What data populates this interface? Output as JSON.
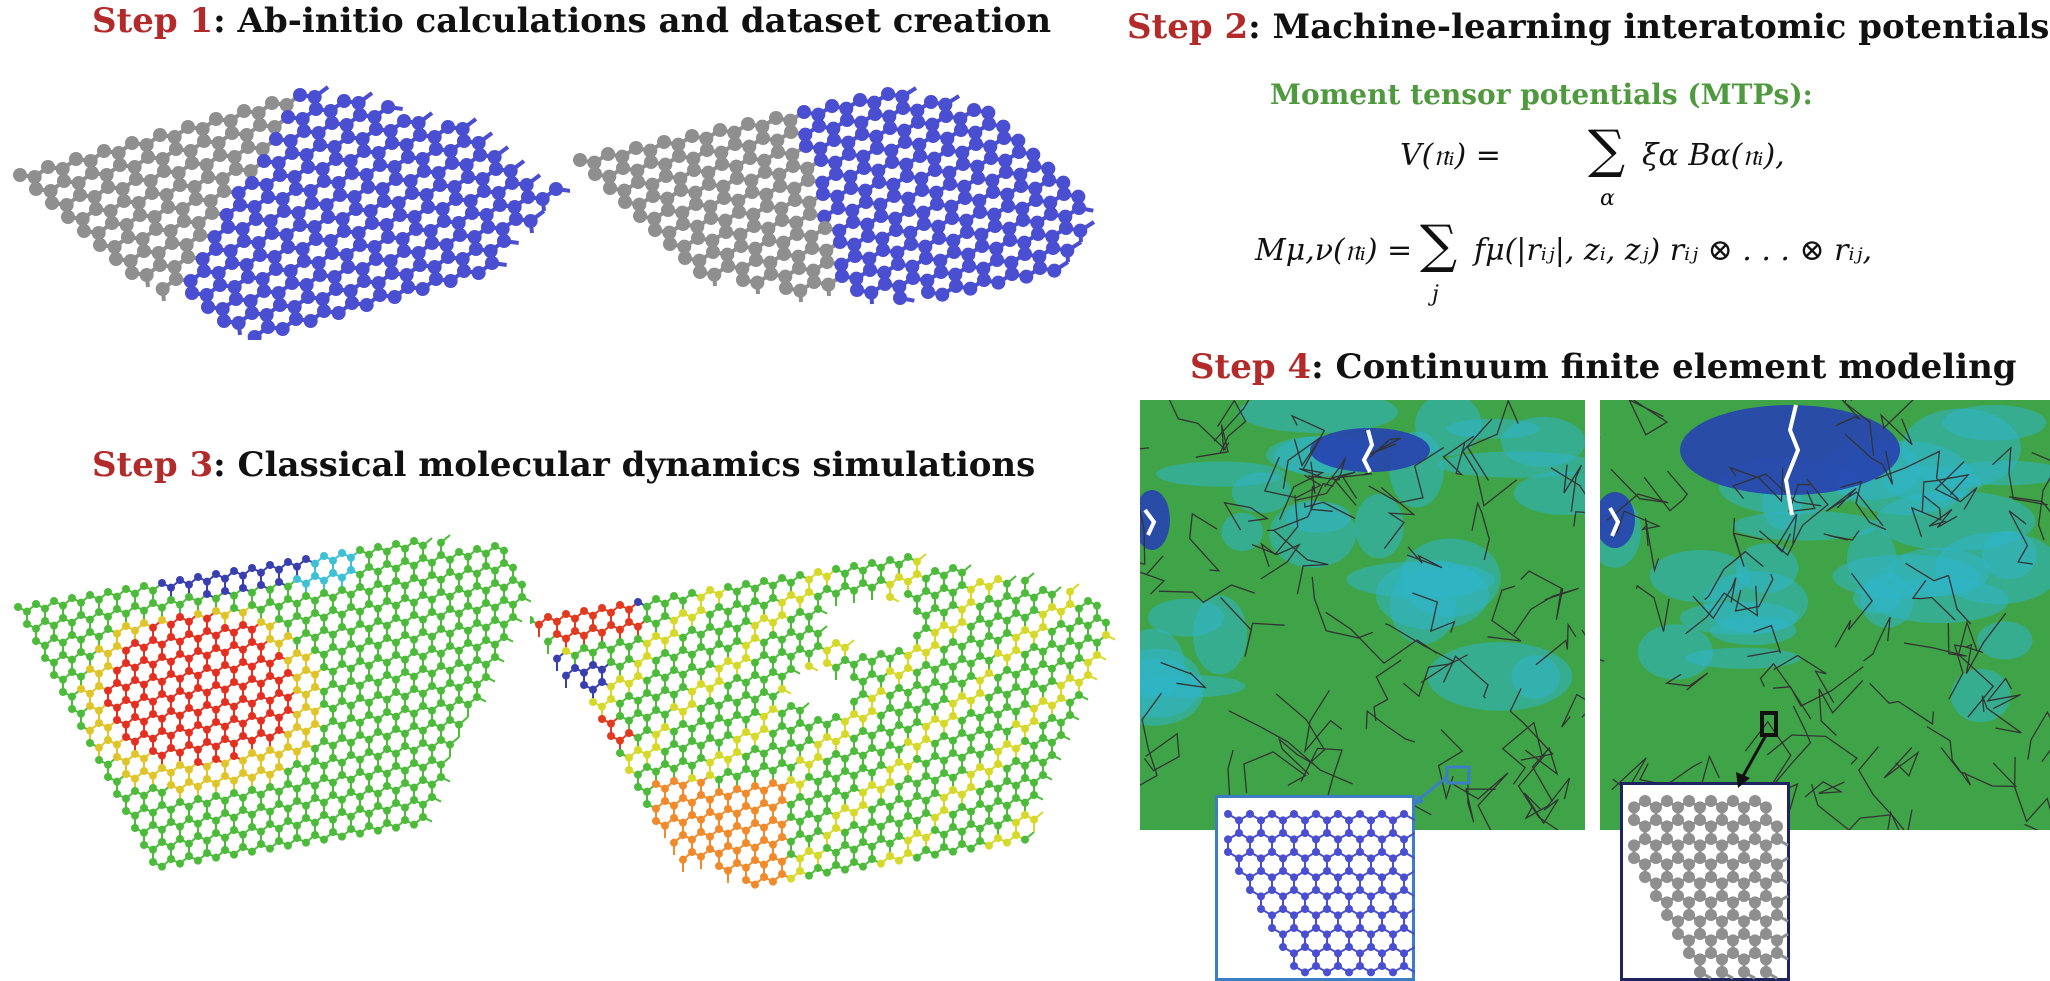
{
  "step1": {
    "step_label": "Step 1",
    "title": ": Ab-initio calculations and dataset creation"
  },
  "step2": {
    "step_label": "Step 2",
    "title": ": Machine-learning interatomic potentials",
    "subtitle": "Moment tensor potentials (MTPs):",
    "eq1_lhs": "V(𝔫ᵢ) =",
    "eq1_sum": "∑",
    "eq1_sub": "α",
    "eq1_rhs": "ξα Bα(𝔫ᵢ),",
    "eq2_lhs": "Mμ,ν(𝔫ᵢ) =",
    "eq2_sum": "∑",
    "eq2_sub": "j",
    "eq2_rhs": "fμ(|rᵢⱼ|, zᵢ, zⱼ) rᵢⱼ ⊗ . . . ⊗ rᵢⱼ,"
  },
  "step3": {
    "step_label": "Step 3",
    "title": ": Classical molecular dynamics simulations"
  },
  "step4": {
    "step_label": "Step 4",
    "title": ": Continuum finite element modeling"
  },
  "colors": {
    "step_red": "#b22a2a",
    "mtp_green": "#4f9a3e",
    "atom_gray": "#8f8f8f",
    "atom_blue": "#4a4ed0",
    "fe_green": "#3fa447",
    "fe_cyan": "#2fb5c9",
    "fe_blue": "#2743b0"
  }
}
